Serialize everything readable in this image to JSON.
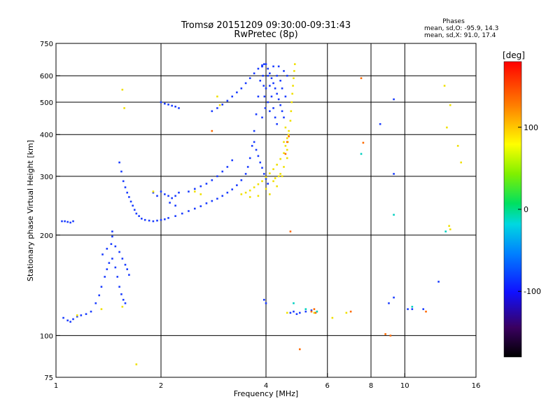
{
  "chart_data": {
    "type": "scatter",
    "title": "Tromsø 20151209 09:30:00-09:31:43",
    "subtitle": "RwPretec (8p)",
    "stats": {
      "heading": "Phases",
      "line1": "mean, sd,O: -95.9, 14.3",
      "line2": "mean, sd,X:  91.0, 17.4"
    },
    "xlabel": "Frequency [MHz]",
    "ylabel": "Stationary phase Virtual Height [km]",
    "x_scale": "log",
    "y_scale": "log",
    "xlim": [
      1,
      16
    ],
    "ylim": [
      75,
      750
    ],
    "x_ticks": [
      1,
      2,
      4,
      6,
      8,
      10,
      16
    ],
    "x_tick_labels": [
      "1",
      "2",
      "4",
      "6",
      "8",
      "10",
      "16"
    ],
    "x_gridlines": [
      2,
      4,
      6,
      8,
      10
    ],
    "y_ticks": [
      75,
      100,
      200,
      300,
      400,
      500,
      600,
      750
    ],
    "y_tick_labels": [
      "75",
      "100",
      "200",
      "300",
      "400",
      "500",
      "600",
      "750"
    ],
    "y_gridlines": [
      100,
      200,
      300,
      400,
      500,
      600
    ],
    "grid": true,
    "colorbar": {
      "label": "[deg]",
      "range": [
        -180,
        180
      ],
      "ticks": [
        100,
        0,
        -100
      ],
      "tick_labels": [
        "100",
        "0",
        "-100"
      ]
    },
    "series": [
      {
        "color_hint": "blue (phase ≈ -100)",
        "points": [
          [
            1.04,
            220
          ],
          [
            1.06,
            220
          ],
          [
            1.08,
            219
          ],
          [
            1.1,
            218
          ],
          [
            1.12,
            220
          ],
          [
            1.05,
            113
          ],
          [
            1.08,
            111
          ],
          [
            1.1,
            110
          ],
          [
            1.12,
            112
          ],
          [
            1.15,
            114
          ],
          [
            1.18,
            115
          ],
          [
            1.22,
            116
          ],
          [
            1.26,
            118
          ],
          [
            1.3,
            125
          ],
          [
            1.33,
            132
          ],
          [
            1.35,
            140
          ],
          [
            1.38,
            150
          ],
          [
            1.4,
            158
          ],
          [
            1.42,
            165
          ],
          [
            1.45,
            170
          ],
          [
            1.48,
            160
          ],
          [
            1.5,
            150
          ],
          [
            1.52,
            140
          ],
          [
            1.54,
            133
          ],
          [
            1.56,
            128
          ],
          [
            1.58,
            125
          ],
          [
            1.36,
            175
          ],
          [
            1.4,
            182
          ],
          [
            1.44,
            188
          ],
          [
            1.48,
            185
          ],
          [
            1.52,
            178
          ],
          [
            1.55,
            170
          ],
          [
            1.58,
            163
          ],
          [
            1.6,
            158
          ],
          [
            1.62,
            152
          ],
          [
            1.45,
            198
          ],
          [
            1.45,
            205
          ],
          [
            1.52,
            330
          ],
          [
            1.54,
            310
          ],
          [
            1.56,
            290
          ],
          [
            1.58,
            278
          ],
          [
            1.6,
            268
          ],
          [
            1.62,
            260
          ],
          [
            1.64,
            252
          ],
          [
            1.66,
            245
          ],
          [
            1.68,
            238
          ],
          [
            1.7,
            232
          ],
          [
            1.73,
            228
          ],
          [
            1.76,
            224
          ],
          [
            1.8,
            222
          ],
          [
            1.85,
            221
          ],
          [
            1.9,
            220
          ],
          [
            1.95,
            221
          ],
          [
            2.0,
            222
          ],
          [
            2.05,
            223
          ],
          [
            2.1,
            225
          ],
          [
            2.2,
            228
          ],
          [
            2.3,
            232
          ],
          [
            2.4,
            236
          ],
          [
            2.5,
            240
          ],
          [
            2.6,
            244
          ],
          [
            2.7,
            249
          ],
          [
            2.8,
            253
          ],
          [
            2.9,
            257
          ],
          [
            3.0,
            262
          ],
          [
            3.1,
            268
          ],
          [
            3.2,
            274
          ],
          [
            3.3,
            282
          ],
          [
            3.4,
            292
          ],
          [
            3.5,
            305
          ],
          [
            3.55,
            320
          ],
          [
            3.6,
            340
          ],
          [
            3.65,
            370
          ],
          [
            3.7,
            410
          ],
          [
            3.75,
            460
          ],
          [
            3.8,
            520
          ],
          [
            3.85,
            580
          ],
          [
            3.9,
            640
          ],
          [
            3.95,
            650
          ],
          [
            2.0,
            270
          ],
          [
            2.05,
            265
          ],
          [
            2.1,
            262
          ],
          [
            2.15,
            258
          ],
          [
            2.2,
            262
          ],
          [
            2.25,
            268
          ],
          [
            1.9,
            268
          ],
          [
            1.95,
            262
          ],
          [
            2.12,
            250
          ],
          [
            2.2,
            245
          ],
          [
            2.4,
            270
          ],
          [
            2.5,
            275
          ],
          [
            2.6,
            280
          ],
          [
            2.7,
            285
          ],
          [
            2.8,
            292
          ],
          [
            2.9,
            300
          ],
          [
            3.0,
            310
          ],
          [
            3.1,
            320
          ],
          [
            3.2,
            335
          ],
          [
            2.8,
            470
          ],
          [
            2.9,
            480
          ],
          [
            3.0,
            492
          ],
          [
            3.1,
            505
          ],
          [
            3.2,
            520
          ],
          [
            3.3,
            535
          ],
          [
            3.4,
            550
          ],
          [
            3.5,
            570
          ],
          [
            3.6,
            590
          ],
          [
            3.7,
            610
          ],
          [
            3.8,
            630
          ],
          [
            3.9,
            645
          ],
          [
            2.0,
            500
          ],
          [
            2.05,
            495
          ],
          [
            2.1,
            492
          ],
          [
            2.15,
            488
          ],
          [
            2.2,
            485
          ],
          [
            2.25,
            480
          ],
          [
            4.0,
            650
          ],
          [
            4.05,
            630
          ],
          [
            4.1,
            610
          ],
          [
            4.15,
            590
          ],
          [
            4.2,
            570
          ],
          [
            4.25,
            550
          ],
          [
            4.3,
            530
          ],
          [
            4.35,
            510
          ],
          [
            4.4,
            490
          ],
          [
            4.45,
            470
          ],
          [
            4.5,
            450
          ],
          [
            4.05,
            600
          ],
          [
            4.1,
            560
          ],
          [
            4.15,
            520
          ],
          [
            4.2,
            480
          ],
          [
            4.25,
            450
          ],
          [
            4.3,
            430
          ],
          [
            4.0,
            550
          ],
          [
            4.05,
            500
          ],
          [
            4.1,
            470
          ],
          [
            4.2,
            640
          ],
          [
            4.3,
            600
          ],
          [
            4.4,
            580
          ],
          [
            4.5,
            620
          ],
          [
            4.6,
            600
          ],
          [
            4.35,
            640
          ],
          [
            4.45,
            550
          ],
          [
            4.55,
            520
          ],
          [
            3.9,
            640
          ],
          [
            3.92,
            600
          ],
          [
            3.94,
            560
          ],
          [
            3.96,
            520
          ],
          [
            3.98,
            480
          ],
          [
            3.9,
            450
          ],
          [
            3.7,
            380
          ],
          [
            3.75,
            360
          ],
          [
            3.8,
            345
          ],
          [
            3.85,
            330
          ],
          [
            3.9,
            318
          ],
          [
            3.95,
            305
          ],
          [
            4.0,
            295
          ],
          [
            4.05,
            285
          ],
          [
            3.95,
            128
          ],
          [
            4.0,
            125
          ],
          [
            4.7,
            117
          ],
          [
            4.8,
            118
          ],
          [
            4.9,
            116
          ],
          [
            5.0,
            117
          ],
          [
            5.2,
            118
          ],
          [
            5.4,
            119
          ],
          [
            8.5,
            430
          ],
          [
            9.3,
            510
          ],
          [
            9.3,
            305
          ],
          [
            9.0,
            125
          ],
          [
            9.3,
            130
          ],
          [
            10.2,
            120
          ],
          [
            10.5,
            120
          ],
          [
            11.3,
            120
          ],
          [
            12.5,
            145
          ]
        ]
      },
      {
        "color_hint": "yellow (phase ≈ +100)",
        "points": [
          [
            3.4,
            265
          ],
          [
            3.5,
            268
          ],
          [
            3.6,
            272
          ],
          [
            3.7,
            278
          ],
          [
            3.8,
            284
          ],
          [
            3.9,
            290
          ],
          [
            4.0,
            298
          ],
          [
            4.1,
            306
          ],
          [
            4.2,
            315
          ],
          [
            4.3,
            325
          ],
          [
            4.4,
            338
          ],
          [
            4.5,
            352
          ],
          [
            4.55,
            370
          ],
          [
            4.6,
            390
          ],
          [
            4.65,
            410
          ],
          [
            4.7,
            440
          ],
          [
            4.72,
            470
          ],
          [
            4.74,
            500
          ],
          [
            4.76,
            530
          ],
          [
            4.78,
            560
          ],
          [
            4.8,
            590
          ],
          [
            4.82,
            620
          ],
          [
            4.84,
            650
          ],
          [
            3.8,
            262
          ],
          [
            4.0,
            275
          ],
          [
            4.2,
            290
          ],
          [
            4.4,
            305
          ],
          [
            4.5,
            320
          ],
          [
            4.6,
            340
          ],
          [
            4.3,
            280
          ],
          [
            4.1,
            265
          ],
          [
            3.6,
            260
          ],
          [
            4.45,
            300
          ],
          [
            4.35,
            300
          ],
          [
            4.25,
            296
          ],
          [
            4.6,
            360
          ],
          [
            4.62,
            380
          ],
          [
            4.64,
            400
          ],
          [
            4.55,
            420
          ],
          [
            4.5,
            380
          ],
          [
            1.55,
            545
          ],
          [
            1.57,
            480
          ],
          [
            1.9,
            270
          ],
          [
            2.5,
            270
          ],
          [
            2.6,
            265
          ],
          [
            2.9,
            520
          ],
          [
            2.95,
            490
          ],
          [
            4.6,
            117
          ],
          [
            5.6,
            118
          ],
          [
            5.5,
            117
          ],
          [
            6.2,
            113
          ],
          [
            6.8,
            117
          ],
          [
            13.0,
            560
          ],
          [
            13.2,
            420
          ],
          [
            13.5,
            490
          ],
          [
            14.2,
            370
          ],
          [
            14.5,
            330
          ],
          [
            13.4,
            213
          ],
          [
            13.5,
            208
          ],
          [
            1.15,
            115
          ],
          [
            1.55,
            122
          ],
          [
            1.7,
            82
          ],
          [
            1.35,
            120
          ]
        ]
      },
      {
        "color_hint": "orange/red (phase ≈ +150)",
        "points": [
          [
            4.6,
            380
          ],
          [
            4.65,
            395
          ],
          [
            4.55,
            350
          ],
          [
            4.7,
            205
          ],
          [
            5.4,
            118
          ],
          [
            5.5,
            120
          ],
          [
            5.55,
            117
          ],
          [
            7.5,
            590
          ],
          [
            7.6,
            378
          ],
          [
            9.1,
            100
          ],
          [
            5.0,
            91
          ],
          [
            8.8,
            101
          ],
          [
            11.5,
            118
          ],
          [
            7.0,
            118
          ],
          [
            2.8,
            410
          ]
        ]
      },
      {
        "color_hint": "cyan/green (phase ≈ 0 to +50)",
        "points": [
          [
            4.8,
            125
          ],
          [
            5.6,
            118
          ],
          [
            5.2,
            120
          ],
          [
            7.5,
            350
          ],
          [
            9.3,
            230
          ],
          [
            13.1,
            205
          ],
          [
            10.5,
            122
          ]
        ]
      }
    ]
  }
}
